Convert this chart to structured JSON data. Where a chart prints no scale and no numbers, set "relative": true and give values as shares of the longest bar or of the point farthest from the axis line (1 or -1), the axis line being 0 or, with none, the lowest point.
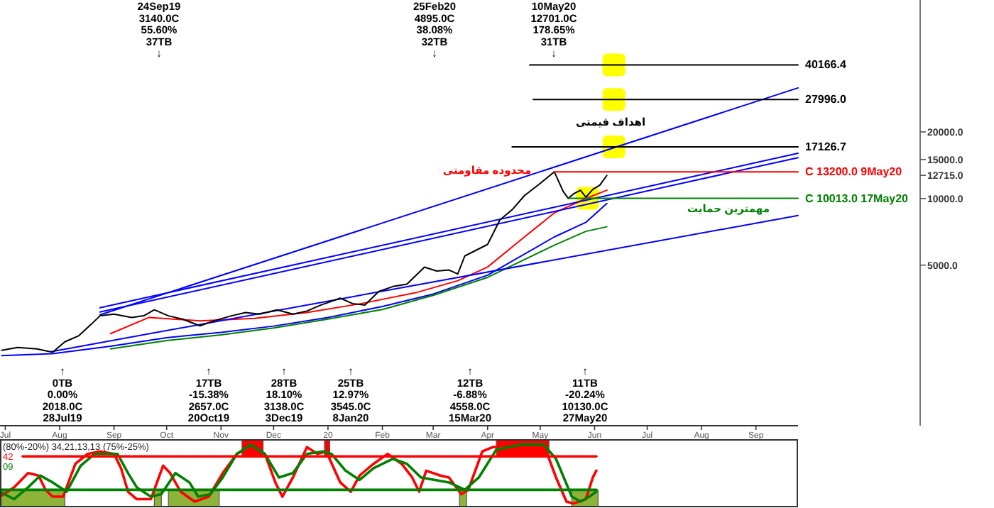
{
  "chart_data": [
    {
      "type": "line",
      "log": true,
      "xlim": [
        "2019-06-28",
        "2020-09-25"
      ],
      "ylim": [
        940,
        78900
      ],
      "xticks": [
        {
          "value": "2019-07-01",
          "label": "Jul"
        },
        {
          "value": "2019-08-01",
          "label": "Aug"
        },
        {
          "value": "2019-09-01",
          "label": "Sep"
        },
        {
          "value": "2019-10-01",
          "label": "Oct"
        },
        {
          "value": "2019-11-01",
          "label": "Nov"
        },
        {
          "value": "2019-12-01",
          "label": "Dec"
        },
        {
          "value": "2020-01-01",
          "label": "20"
        },
        {
          "value": "2020-02-01",
          "label": "Feb"
        },
        {
          "value": "2020-03-01",
          "label": "Mar"
        },
        {
          "value": "2020-04-01",
          "label": "Apr"
        },
        {
          "value": "2020-05-01",
          "label": "May"
        },
        {
          "value": "2020-06-01",
          "label": "Jun"
        },
        {
          "value": "2020-07-01",
          "label": "Jul"
        },
        {
          "value": "2020-08-01",
          "label": "Aug"
        },
        {
          "value": "2020-09-01",
          "label": "Sep"
        }
      ],
      "yticks": [
        {
          "value": 5000,
          "label": "5000.0"
        },
        {
          "value": 10000,
          "label": "10000.0"
        },
        {
          "value": 12715,
          "label": "12715.0"
        },
        {
          "value": 15000,
          "label": "15000.0"
        },
        {
          "value": 20000,
          "label": "20000.0"
        }
      ],
      "series": [
        {
          "type": "scatter",
          "marker": "square",
          "color": "#ffff00",
          "x": [
            "2020-06-12",
            "2020-06-12",
            "2020-06-12",
            "2020-05-28"
          ],
          "values": [
            40166.4,
            27996,
            17126.7,
            10013
          ]
        },
        {
          "color": "#ff0000",
          "x": [
            "2019-08-30",
            "2019-09-21",
            "2019-10-20",
            "2019-11-20",
            "2019-12-20",
            "2020-01-20",
            "2020-02-20",
            "2020-03-15",
            "2020-04-01",
            "2020-04-20",
            "2020-05-09",
            "2020-05-27",
            "2020-06-08"
          ],
          "values": [
            2450,
            2900,
            2800,
            2870,
            3050,
            3350,
            3750,
            4250,
            4900,
            6500,
            8600,
            10000,
            10900
          ]
        },
        {
          "color": "#0000ff",
          "x": [
            "2019-06-29",
            "2019-07-28",
            "2019-08-30",
            "2019-10-01",
            "2019-11-01",
            "2019-12-01",
            "2020-01-01",
            "2020-02-01",
            "2020-03-01",
            "2020-04-01",
            "2020-05-09",
            "2020-05-27",
            "2020-06-08"
          ],
          "values": [
            1950,
            1990,
            2150,
            2350,
            2480,
            2650,
            2900,
            3250,
            3700,
            4500,
            6700,
            7800,
            9500
          ]
        },
        {
          "color": "#008000",
          "x": [
            "2019-08-30",
            "2019-10-01",
            "2019-11-01",
            "2019-12-01",
            "2020-01-01",
            "2020-02-01",
            "2020-03-01",
            "2020-04-01",
            "2020-05-09",
            "2020-05-27",
            "2020-06-08"
          ],
          "values": [
            2090,
            2280,
            2420,
            2600,
            2850,
            3150,
            3650,
            4400,
            6150,
            7100,
            7450
          ]
        },
        {
          "color": "#0000ff",
          "x": [
            "2019-08-24",
            "2020-09-25"
          ],
          "values": [
            2980,
            31600
          ]
        },
        {
          "color": "#0000ff",
          "x": [
            "2019-08-24",
            "2020-09-25"
          ],
          "values": [
            3210,
            16000
          ]
        },
        {
          "color": "#0000ff",
          "x": [
            "2019-08-24",
            "2020-09-25"
          ],
          "values": [
            3070,
            15300
          ]
        },
        {
          "color": "#0000ff",
          "x": [
            "2019-07-27",
            "2020-09-25"
          ],
          "values": [
            2030,
            8380
          ]
        },
        {
          "color": "#000000",
          "x": [
            "2019-06-29",
            "2019-07-08",
            "2019-07-19",
            "2019-07-28",
            "2019-08-04",
            "2019-08-12",
            "2019-08-19",
            "2019-08-24",
            "2019-09-01",
            "2019-09-11",
            "2019-09-18",
            "2019-09-24",
            "2019-10-02",
            "2019-10-10",
            "2019-10-20",
            "2019-10-28",
            "2019-11-07",
            "2019-11-15",
            "2019-11-23",
            "2019-12-03",
            "2019-12-12",
            "2019-12-20",
            "2019-12-28",
            "2020-01-08",
            "2020-01-15",
            "2020-01-22",
            "2020-01-30",
            "2020-02-07",
            "2020-02-15",
            "2020-02-25",
            "2020-03-03",
            "2020-03-10",
            "2020-03-15",
            "2020-03-19",
            "2020-04-01",
            "2020-04-08",
            "2020-04-15",
            "2020-04-22",
            "2020-05-01",
            "2020-05-09",
            "2020-05-10",
            "2020-05-14",
            "2020-05-17",
            "2020-05-20",
            "2020-05-24",
            "2020-05-27",
            "2020-05-31",
            "2020-06-04",
            "2020-06-08"
          ],
          "values": [
            2060,
            2120,
            2090,
            2018,
            2250,
            2400,
            2700,
            2950,
            3000,
            2900,
            2950,
            3140,
            2950,
            2850,
            2657,
            2800,
            2950,
            3050,
            3000,
            3138,
            3000,
            3100,
            3300,
            3545,
            3350,
            3300,
            3800,
            4000,
            4100,
            4895,
            4700,
            4750,
            4558,
            5500,
            6200,
            8000,
            8900,
            10300,
            11700,
            13200,
            12701,
            10800,
            10013,
            10500,
            10900,
            10130,
            11000,
            11500,
            12715
          ]
        },
        {
          "color": "#000000",
          "x": [
            "2020-04-25",
            "2020-09-25"
          ],
          "values": [
            40166.4,
            40166.4
          ],
          "value_labels": [
            null,
            "40166.4"
          ]
        },
        {
          "color": "#000000",
          "x": [
            "2020-04-27",
            "2020-09-25"
          ],
          "values": [
            27996,
            27996
          ],
          "value_labels": [
            null,
            "27996.0"
          ]
        },
        {
          "color": "#000000",
          "x": [
            "2020-04-15",
            "2020-09-25"
          ],
          "values": [
            17126.7,
            17126.7
          ],
          "value_labels": [
            null,
            "17126.7"
          ]
        },
        {
          "color": "#ff0000",
          "x": [
            "2020-05-09",
            "2020-09-25"
          ],
          "values": [
            13200,
            13200
          ],
          "value_labels": [
            null,
            "C 13200.0 9May20"
          ]
        },
        {
          "color": "#008000",
          "x": [
            "2020-05-17",
            "2020-09-25"
          ],
          "values": [
            10013,
            10013
          ],
          "value_labels": [
            null,
            "C 10013.0 17May20"
          ]
        }
      ],
      "annotations": [
        "24Sep19\n3140.0C\n55.60%\n37TB\n↓",
        "25Feb20\n4895.0C\n38.08%\n32TB\n↓",
        "10May20\n12701.0C\n178.65%\n31TB\n↓",
        "↑\n0TB\n0.00%\n2018.0C\n28Jul19",
        "↑\n17TB\n-15.38%\n2657.0C\n20Oct19",
        "↑\n28TB\n18.10%\n3138.0C\n3Dec19",
        "↑\n25TB\n12.97%\n3545.0C\n8Jan20",
        "↑\n12TB\n-6.88%\n4558.0C\n15Mar20",
        "↑\n11TB\n-20.24%\n10130.0C\n27May20",
        "محدوده مقاومتی",
        "اهداف قیمتی",
        "مهمترین حمایت"
      ]
    },
    {
      "type": "line",
      "relative": true,
      "title": "(80%-20%) 34,21,13,13 (75%-25%)",
      "xlim": [
        "2019-06-28",
        "2020-09-25"
      ],
      "legend": "top left",
      "bands": [
        {
          "axis": "x",
          "from": "2019-06-28",
          "to": "2019-08-04",
          "color": "#8db33a"
        },
        {
          "axis": "x",
          "from": "2019-09-24",
          "to": "2019-09-28",
          "color": "#8db33a"
        },
        {
          "axis": "x",
          "from": "2019-10-02",
          "to": "2019-10-31",
          "color": "#8db33a"
        },
        {
          "axis": "x",
          "from": "2020-03-16",
          "to": "2020-03-20",
          "color": "#8db33a"
        },
        {
          "axis": "x",
          "from": "2020-05-19",
          "to": "2020-06-03",
          "color": "#8db33a"
        },
        {
          "axis": "x",
          "from": "2019-11-13",
          "to": "2019-11-25",
          "color": "#ff0000"
        },
        {
          "axis": "x",
          "from": "2019-12-30",
          "to": "2020-01-02",
          "color": "#ff0000"
        },
        {
          "axis": "x",
          "from": "2020-04-06",
          "to": "2020-05-06",
          "color": "#ff0000"
        }
      ],
      "series": [
        {
          "name": "42",
          "color": "#ff0000",
          "x": [
            "2019-06-28",
            "2019-07-06",
            "2019-07-14",
            "2019-07-20",
            "2019-07-24",
            "2019-07-28",
            "2019-08-03",
            "2019-08-10",
            "2019-08-17",
            "2019-08-24",
            "2019-09-01",
            "2019-09-05",
            "2019-09-09",
            "2019-09-14",
            "2019-09-22",
            "2019-09-29",
            "2019-10-03",
            "2019-10-09",
            "2019-10-17",
            "2019-10-25",
            "2019-11-02",
            "2019-11-10",
            "2019-11-18",
            "2019-11-26",
            "2019-12-02",
            "2019-12-06",
            "2019-12-12",
            "2019-12-20",
            "2019-12-26",
            "2019-12-31",
            "2020-01-08",
            "2020-01-14",
            "2020-01-19",
            "2020-01-27",
            "2020-02-04",
            "2020-02-12",
            "2020-02-18",
            "2020-02-22",
            "2020-02-26",
            "2020-03-05",
            "2020-03-10",
            "2020-03-17",
            "2020-03-21",
            "2020-03-29",
            "2020-04-04",
            "2020-04-22",
            "2020-05-05",
            "2020-05-10",
            "2020-05-16",
            "2020-05-20",
            "2020-05-27",
            "2020-05-31",
            "2020-06-02"
          ],
          "values": [
            0.16,
            0.31,
            0.54,
            0.5,
            0.27,
            0.16,
            0.16,
            0.69,
            0.85,
            0.89,
            0.85,
            0.62,
            0.24,
            0.12,
            0.12,
            0.66,
            0.54,
            0.24,
            0.08,
            0.16,
            0.54,
            0.85,
            0.96,
            0.85,
            0.39,
            0.16,
            0.47,
            0.96,
            0.85,
            0.89,
            0.39,
            0.24,
            0.5,
            0.69,
            0.85,
            0.69,
            0.47,
            0.24,
            0.58,
            0.5,
            0.47,
            0.2,
            0.27,
            0.89,
            0.96,
            0.96,
            0.85,
            0.47,
            0.08,
            0.05,
            0.12,
            0.47,
            0.58
          ]
        },
        {
          "name": "09",
          "color": "#008000",
          "x": [
            "2019-06-28",
            "2019-07-06",
            "2019-07-14",
            "2019-07-21",
            "2019-07-28",
            "2019-08-05",
            "2019-08-13",
            "2019-08-21",
            "2019-08-29",
            "2019-09-03",
            "2019-09-09",
            "2019-09-14",
            "2019-09-22",
            "2019-09-28",
            "2019-10-06",
            "2019-10-14",
            "2019-10-19",
            "2019-10-26",
            "2019-11-02",
            "2019-11-10",
            "2019-11-18",
            "2019-11-26",
            "2019-12-04",
            "2019-12-12",
            "2019-12-20",
            "2019-12-29",
            "2020-01-03",
            "2020-01-11",
            "2020-01-19",
            "2020-01-27",
            "2020-02-07",
            "2020-02-15",
            "2020-02-23",
            "2020-03-02",
            "2020-03-10",
            "2020-03-19",
            "2020-03-27",
            "2020-04-06",
            "2020-04-20",
            "2020-05-03",
            "2020-05-10",
            "2020-05-19",
            "2020-05-24",
            "2020-05-29",
            "2020-06-02"
          ],
          "values": [
            0.24,
            0.12,
            0.31,
            0.5,
            0.39,
            0.24,
            0.66,
            0.85,
            0.85,
            0.85,
            0.54,
            0.31,
            0.16,
            0.2,
            0.54,
            0.39,
            0.16,
            0.2,
            0.47,
            0.85,
            1,
            0.85,
            0.47,
            0.54,
            0.85,
            0.89,
            0.85,
            0.58,
            0.43,
            0.62,
            0.77,
            0.69,
            0.47,
            0.43,
            0.39,
            0.27,
            0.47,
            0.92,
            1,
            1,
            0.77,
            0.16,
            0.08,
            0.16,
            0.24
          ]
        },
        {
          "color": "#ff0000",
          "x": [
            "2019-07-11",
            "2020-06-02"
          ],
          "values": [
            0.81,
            0.81
          ]
        },
        {
          "color": "#008000",
          "x": [
            "2019-06-28",
            "2020-06-02"
          ],
          "values": [
            0.27,
            0.27
          ]
        }
      ]
    }
  ]
}
